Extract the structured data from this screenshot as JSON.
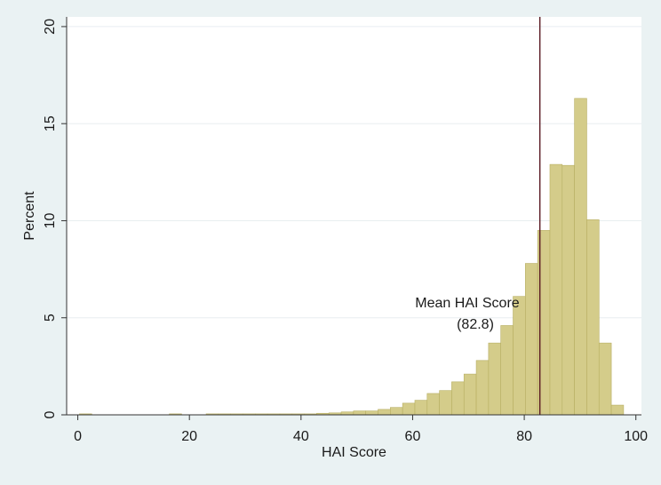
{
  "colors": {
    "outer_background": "#eaf2f3",
    "plot_background": "#ffffff",
    "bar_fill": "#d4cc8a",
    "bar_edge": "#b7ae62",
    "mean_line": "#5a1a22",
    "gridline": "#e8eef0"
  },
  "chart_data": {
    "type": "bar",
    "subtype": "histogram",
    "xlabel": "HAI Score",
    "ylabel": "Percent",
    "xlim": [
      -2,
      101
    ],
    "ylim": [
      0,
      20.5
    ],
    "x_ticks": [
      0,
      20,
      40,
      60,
      80,
      100
    ],
    "y_ticks": [
      0,
      5,
      10,
      15,
      20
    ],
    "grid": "horizontal",
    "bin_width": 2.2,
    "bins": [
      {
        "x0": 0.3,
        "value": 0.05
      },
      {
        "x0": 16.4,
        "value": 0.05
      },
      {
        "x0": 23.0,
        "value": 0.05
      },
      {
        "x0": 25.2,
        "value": 0.05
      },
      {
        "x0": 27.4,
        "value": 0.05
      },
      {
        "x0": 29.6,
        "value": 0.05
      },
      {
        "x0": 31.8,
        "value": 0.05
      },
      {
        "x0": 34.0,
        "value": 0.05
      },
      {
        "x0": 36.2,
        "value": 0.05
      },
      {
        "x0": 38.4,
        "value": 0.05
      },
      {
        "x0": 40.6,
        "value": 0.05
      },
      {
        "x0": 42.8,
        "value": 0.08
      },
      {
        "x0": 45.0,
        "value": 0.1
      },
      {
        "x0": 47.2,
        "value": 0.15
      },
      {
        "x0": 49.4,
        "value": 0.2
      },
      {
        "x0": 51.6,
        "value": 0.2
      },
      {
        "x0": 53.8,
        "value": 0.28
      },
      {
        "x0": 56.0,
        "value": 0.38
      },
      {
        "x0": 58.2,
        "value": 0.6
      },
      {
        "x0": 60.4,
        "value": 0.75
      },
      {
        "x0": 62.6,
        "value": 1.1
      },
      {
        "x0": 64.8,
        "value": 1.25
      },
      {
        "x0": 67.0,
        "value": 1.7
      },
      {
        "x0": 69.2,
        "value": 2.1
      },
      {
        "x0": 71.4,
        "value": 2.8
      },
      {
        "x0": 73.6,
        "value": 3.7
      },
      {
        "x0": 75.8,
        "value": 4.6
      },
      {
        "x0": 78.0,
        "value": 6.1
      },
      {
        "x0": 80.2,
        "value": 7.8
      },
      {
        "x0": 82.4,
        "value": 9.5
      },
      {
        "x0": 84.6,
        "value": 12.9
      },
      {
        "x0": 86.8,
        "value": 12.85
      },
      {
        "x0": 89.0,
        "value": 16.3
      },
      {
        "x0": 91.2,
        "value": 10.05
      },
      {
        "x0": 93.4,
        "value": 3.7
      },
      {
        "x0": 95.6,
        "value": 0.5
      }
    ],
    "mean_line": {
      "x": 82.8,
      "label_line1": "Mean HAI Score",
      "label_line2": "(82.8)"
    }
  }
}
